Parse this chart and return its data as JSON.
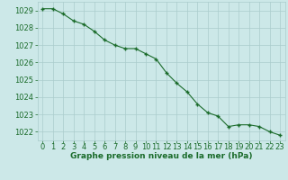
{
  "x": [
    0,
    1,
    2,
    3,
    4,
    5,
    6,
    7,
    8,
    9,
    10,
    11,
    12,
    13,
    14,
    15,
    16,
    17,
    18,
    19,
    20,
    21,
    22,
    23
  ],
  "y": [
    1029.1,
    1029.1,
    1028.8,
    1028.4,
    1028.2,
    1027.8,
    1027.3,
    1027.0,
    1026.8,
    1026.8,
    1026.5,
    1026.2,
    1025.4,
    1024.8,
    1024.3,
    1023.6,
    1023.1,
    1022.9,
    1022.3,
    1022.4,
    1022.4,
    1022.3,
    1022.0,
    1021.8
  ],
  "line_color": "#1a6b2a",
  "marker": "+",
  "marker_color": "#1a6b2a",
  "background_color": "#cce8e8",
  "grid_color": "#aacccc",
  "text_color": "#1a6b2a",
  "xlabel": "Graphe pression niveau de la mer (hPa)",
  "xlabel_fontsize": 6.5,
  "tick_fontsize": 6,
  "ylim": [
    1021.5,
    1029.5
  ],
  "yticks": [
    1022,
    1023,
    1024,
    1025,
    1026,
    1027,
    1028,
    1029
  ],
  "xlim": [
    -0.5,
    23.5
  ],
  "xticks": [
    0,
    1,
    2,
    3,
    4,
    5,
    6,
    7,
    8,
    9,
    10,
    11,
    12,
    13,
    14,
    15,
    16,
    17,
    18,
    19,
    20,
    21,
    22,
    23
  ],
  "linewidth": 0.8,
  "markersize": 3.5
}
